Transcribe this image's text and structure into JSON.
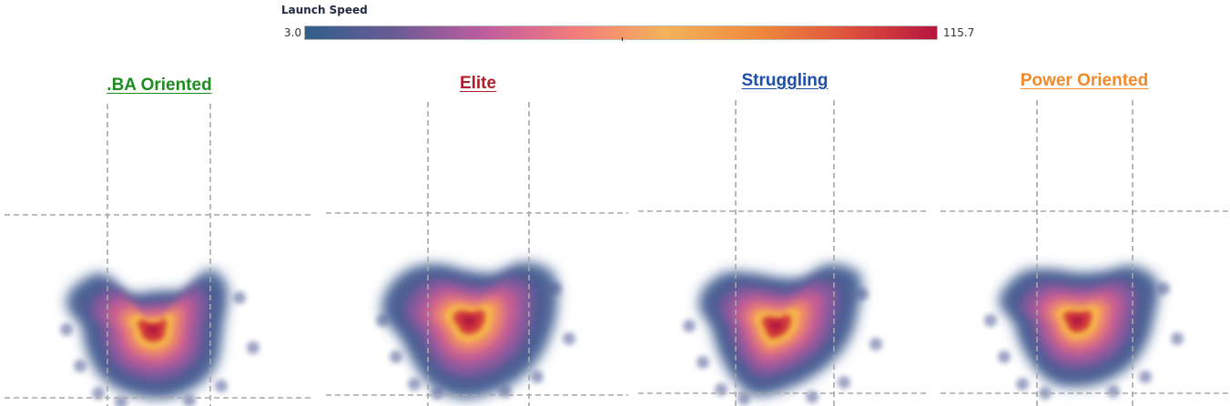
{
  "legend": {
    "title": "Launch Speed",
    "min_label": "3.0",
    "max_label": "115.7",
    "min": 3.0,
    "max": 115.7,
    "colors": [
      "#2f5f8a",
      "#6b5b95",
      "#c15c9f",
      "#f47c7c",
      "#f3b35a",
      "#ef8a3c",
      "#e0533e",
      "#b5153f"
    ]
  },
  "panels": [
    {
      "title": ".BA Oriented",
      "color": "#1e8c1e"
    },
    {
      "title": "Elite",
      "color": "#b01e2a"
    },
    {
      "title": "Struggling",
      "color": "#1f4fa8"
    },
    {
      "title": "Power Oriented",
      "color": "#f08a2a"
    }
  ],
  "chart_data": [
    {
      "type": "heatmap",
      "title": ".BA Oriented",
      "value_label": "Launch Speed",
      "value_range": [
        3.0,
        115.7
      ],
      "peak_value": 115.7
    },
    {
      "type": "heatmap",
      "title": "Elite",
      "value_label": "Launch Speed",
      "value_range": [
        3.0,
        115.7
      ],
      "peak_value": 115.7
    },
    {
      "type": "heatmap",
      "title": "Struggling",
      "value_label": "Launch Speed",
      "value_range": [
        3.0,
        115.7
      ],
      "peak_value": 115.7
    },
    {
      "type": "heatmap",
      "title": "Power Oriented",
      "value_label": "Launch Speed",
      "value_range": [
        3.0,
        115.7
      ],
      "peak_value": 115.7
    }
  ]
}
